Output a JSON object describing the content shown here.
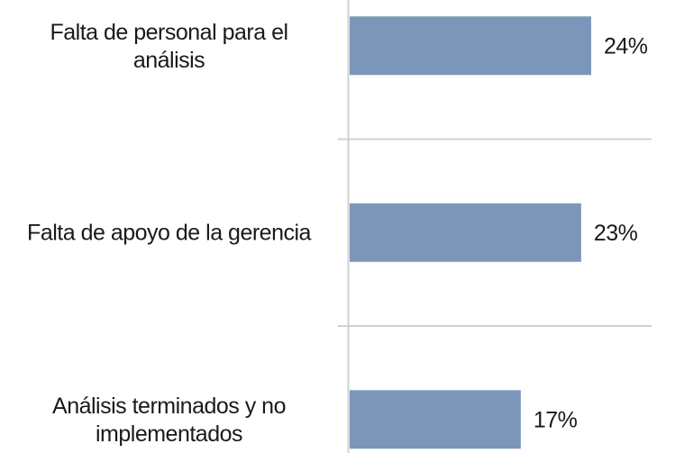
{
  "chart_data": {
    "type": "bar",
    "orientation": "horizontal",
    "categories": [
      "Falta de personal para el análisis",
      "Falta de apoyo de la gerencia",
      "Análisis terminados y no implementados"
    ],
    "values": [
      24,
      23,
      17
    ],
    "value_labels": [
      "24%",
      "23%",
      "17%"
    ],
    "color": "#7b96b8",
    "xlim": [
      0,
      30
    ]
  }
}
